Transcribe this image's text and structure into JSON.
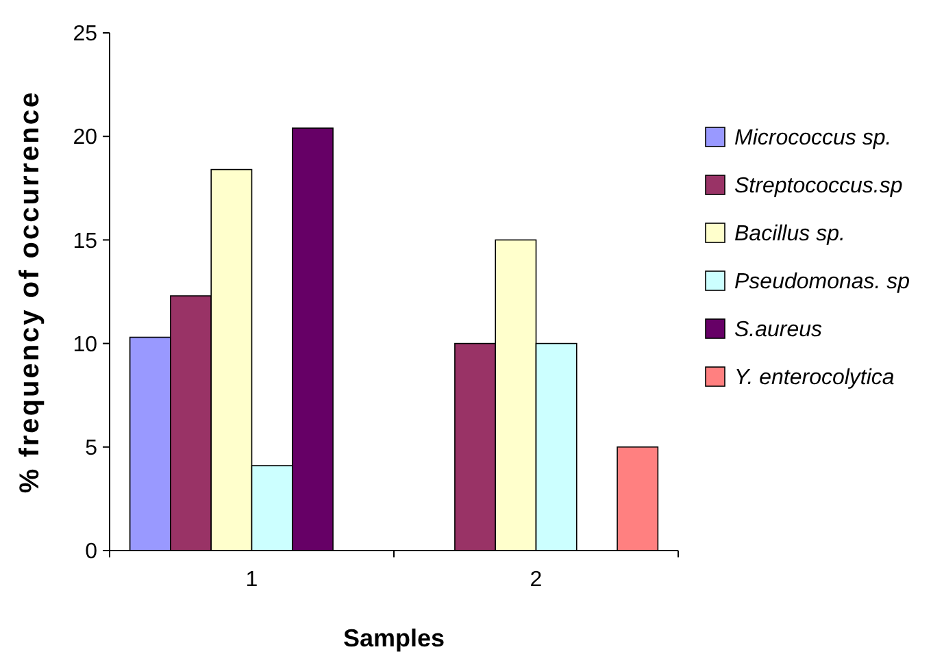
{
  "chart_data": {
    "type": "bar",
    "xlabel": "Samples",
    "ylabel": "% frequency of occurrence",
    "categories": [
      "1",
      "2"
    ],
    "series": [
      {
        "name": "Micrococcus sp.",
        "color": "#9999ff",
        "values": [
          10.3,
          null
        ]
      },
      {
        "name": "Streptococcus.sp",
        "color": "#993366",
        "values": [
          12.3,
          10
        ]
      },
      {
        "name": "Bacillus sp.",
        "color": "#ffffcc",
        "values": [
          18.4,
          15
        ]
      },
      {
        "name": "Pseudomonas. sp",
        "color": "#ccffff",
        "values": [
          4.1,
          10
        ]
      },
      {
        "name": "S.aureus",
        "color": "#660066",
        "values": [
          20.4,
          null
        ]
      },
      {
        "name": "Y. enterocolytica",
        "color": "#ff8080",
        "values": [
          null,
          5
        ]
      }
    ],
    "ylim": [
      0,
      25
    ],
    "yticks": [
      0,
      5,
      10,
      15,
      20,
      25
    ],
    "grid": false,
    "legend": "right"
  }
}
